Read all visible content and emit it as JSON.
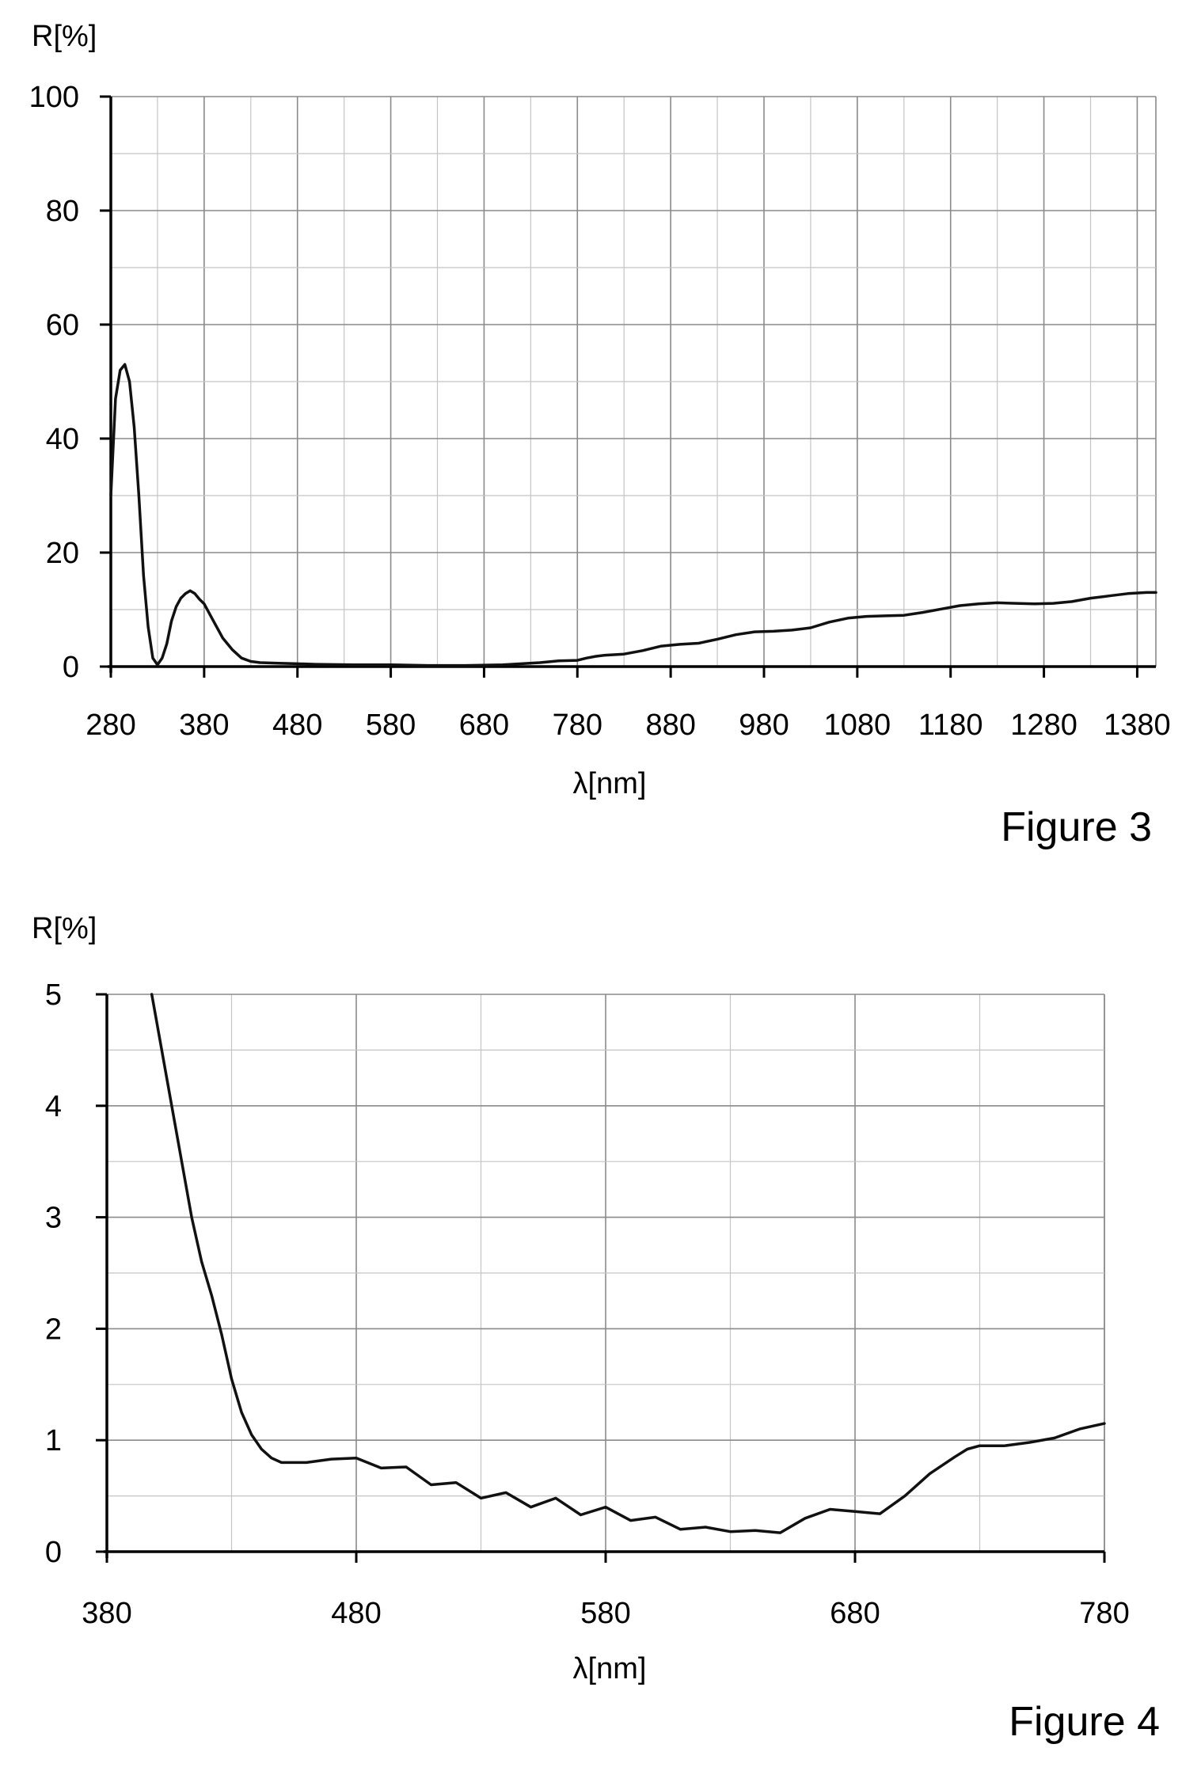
{
  "chart_data": [
    {
      "type": "line",
      "caption": "Figure 3",
      "title": "",
      "xlabel": "λ[nm]",
      "ylabel": "R[%]",
      "xlim": [
        280,
        1400
      ],
      "ylim": [
        0,
        100
      ],
      "xticks": [
        280,
        380,
        480,
        580,
        680,
        780,
        880,
        980,
        1080,
        1180,
        1280,
        1380
      ],
      "yticks": [
        0,
        20,
        40,
        60,
        80,
        100
      ],
      "grid": true,
      "series": [
        {
          "x": [
            280,
            285,
            290,
            295,
            300,
            305,
            310,
            315,
            320,
            325,
            330,
            335,
            340,
            345,
            350,
            355,
            360,
            365,
            370,
            375,
            380,
            390,
            400,
            410,
            420,
            430,
            440,
            460,
            480,
            500,
            540,
            580,
            620,
            660,
            700,
            740,
            760,
            780,
            790,
            800,
            810,
            830,
            850,
            870,
            890,
            910,
            930,
            950,
            970,
            990,
            1010,
            1030,
            1050,
            1070,
            1090,
            1110,
            1130,
            1150,
            1170,
            1190,
            1210,
            1230,
            1250,
            1270,
            1290,
            1310,
            1330,
            1350,
            1370,
            1390,
            1400
          ],
          "y": [
            30,
            47,
            52,
            53,
            50,
            42,
            30,
            16,
            7,
            1.5,
            0.3,
            1.5,
            4,
            8,
            10.5,
            12,
            12.8,
            13.3,
            12.8,
            11.8,
            11,
            8,
            5,
            3,
            1.5,
            0.9,
            0.7,
            0.6,
            0.5,
            0.4,
            0.3,
            0.3,
            0.2,
            0.2,
            0.3,
            0.7,
            1.0,
            1.1,
            1.5,
            1.8,
            2.0,
            2.2,
            2.8,
            3.6,
            3.9,
            4.1,
            4.8,
            5.6,
            6.1,
            6.2,
            6.4,
            6.8,
            7.8,
            8.5,
            8.8,
            8.9,
            9.0,
            9.5,
            10.1,
            10.7,
            11.0,
            11.2,
            11.1,
            11.0,
            11.1,
            11.4,
            12.0,
            12.4,
            12.8,
            13.0,
            13.0
          ]
        }
      ]
    },
    {
      "type": "line",
      "caption": "Figure 4",
      "title": "",
      "xlabel": "λ[nm]",
      "ylabel": "R[%]",
      "xlim": [
        380,
        780
      ],
      "ylim": [
        0,
        5
      ],
      "xticks": [
        380,
        480,
        580,
        680,
        780
      ],
      "yticks": [
        0,
        1,
        2,
        3,
        4,
        5
      ],
      "grid": true,
      "series": [
        {
          "x": [
            398,
            402,
            406,
            410,
            414,
            418,
            422,
            426,
            430,
            434,
            438,
            442,
            446,
            450,
            460,
            470,
            480,
            490,
            500,
            510,
            520,
            530,
            540,
            550,
            560,
            570,
            580,
            590,
            600,
            610,
            620,
            630,
            640,
            650,
            660,
            670,
            680,
            690,
            700,
            710,
            720,
            725,
            730,
            740,
            750,
            760,
            770,
            780
          ],
          "y": [
            5.0,
            4.5,
            4.0,
            3.5,
            3.0,
            2.6,
            2.3,
            1.95,
            1.55,
            1.25,
            1.05,
            0.92,
            0.84,
            0.8,
            0.8,
            0.83,
            0.84,
            0.75,
            0.76,
            0.6,
            0.62,
            0.48,
            0.53,
            0.4,
            0.48,
            0.33,
            0.4,
            0.28,
            0.31,
            0.2,
            0.22,
            0.18,
            0.19,
            0.17,
            0.3,
            0.38,
            0.36,
            0.34,
            0.5,
            0.7,
            0.85,
            0.92,
            0.95,
            0.95,
            0.98,
            1.02,
            1.1,
            1.15
          ]
        }
      ]
    }
  ]
}
